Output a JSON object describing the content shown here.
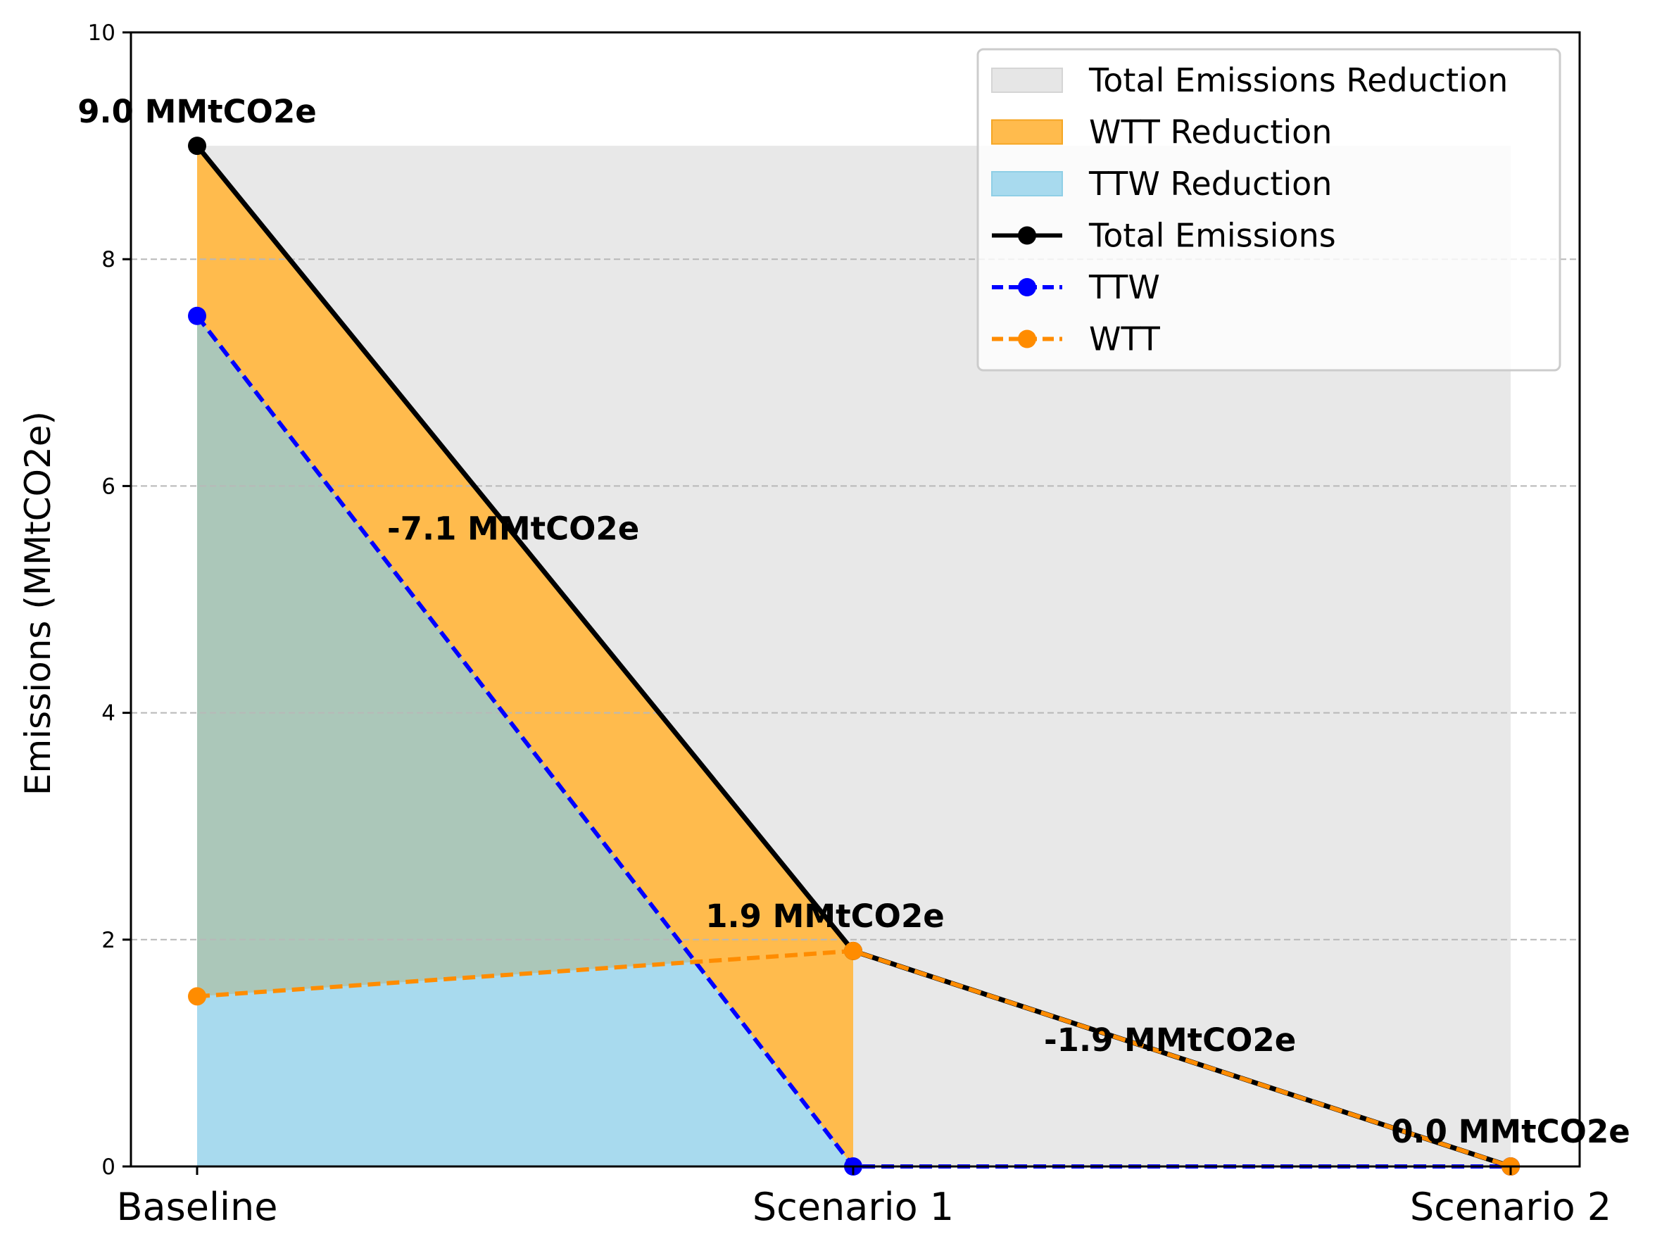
{
  "chart_data": {
    "type": "line",
    "title": "",
    "xlabel": "",
    "ylabel": "Emissions (MMtCO2e)",
    "ylim": [
      0,
      10
    ],
    "yticks": [
      "0",
      "2",
      "4",
      "6",
      "8",
      "10"
    ],
    "categories": [
      "Baseline",
      "Scenario 1",
      "Scenario 2"
    ],
    "grid": "y-dashed",
    "legend_position": "top-right",
    "series": [
      {
        "name": "Total Emissions",
        "values": [
          9.0,
          1.9,
          0.0
        ],
        "color": "#000000",
        "style": "solid"
      },
      {
        "name": "TTW",
        "values": [
          7.5,
          0.0,
          0.0
        ],
        "color": "#0000ff",
        "style": "dashed"
      },
      {
        "name": "WTT",
        "values": [
          1.5,
          1.9,
          0.0
        ],
        "color": "#ff8c00",
        "style": "dashed"
      }
    ],
    "areas": [
      {
        "name": "Total Emissions Reduction",
        "color": "#e6e6e6"
      },
      {
        "name": "WTT Reduction",
        "color": "#ffbb4d"
      },
      {
        "name": "TTW Reduction",
        "color": "#a8daee"
      }
    ],
    "annotations": [
      {
        "text": "9.0 MMtCO2e"
      },
      {
        "text": "1.9 MMtCO2e"
      },
      {
        "text": "0.0 MMtCO2e"
      },
      {
        "text": "-7.1 MMtCO2e"
      },
      {
        "text": "-1.9 MMtCO2e"
      }
    ]
  }
}
